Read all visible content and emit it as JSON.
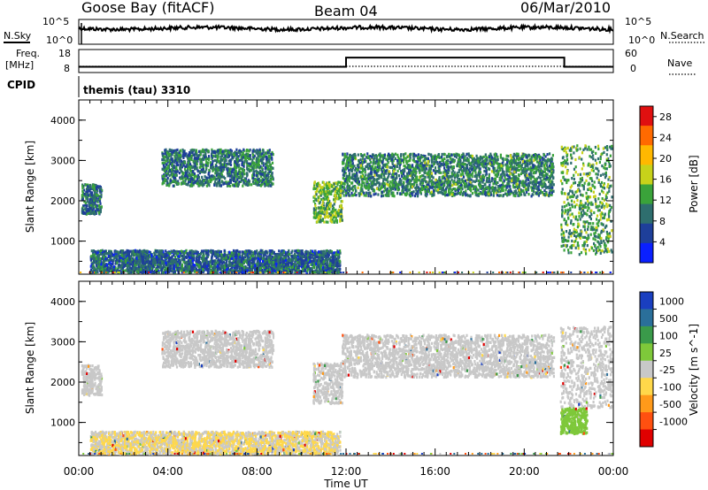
{
  "header": {
    "station": "Goose Bay (fitACF)",
    "beam": "Beam 04",
    "date": "06/Mar/2010"
  },
  "top_panels": {
    "nsky_label": "N.Sky",
    "nsearch_label": "N.Search",
    "noise_ticks": [
      "10^5",
      "10^0"
    ],
    "freq_label_1": "Freq.",
    "freq_label_2": "[MHz]",
    "freq_ticks": [
      "18",
      "8"
    ],
    "nave_label": "Nave",
    "nave_ticks": [
      "60",
      "0"
    ],
    "cpid_label": "CPID",
    "cpid_value": "themis (tau) 3310"
  },
  "x_axis": {
    "label": "Time UT",
    "ticks": [
      "00:00",
      "04:00",
      "08:00",
      "12:00",
      "16:00",
      "20:00",
      "00:00"
    ]
  },
  "colors": {
    "power_scale": [
      "#0a20ff",
      "#1e3f9a",
      "#2e6e6e",
      "#3aa33a",
      "#c7d21a",
      "#ffb800",
      "#ff6a00",
      "#e01010"
    ],
    "velocity_scale": [
      "#1a3fc0",
      "#2a6f9a",
      "#3a9a4a",
      "#7ec83a",
      "#c8c8c8",
      "#ffd84a",
      "#ff9a1a",
      "#ff5010",
      "#e00000"
    ]
  },
  "chart_data": [
    {
      "type": "heatmap",
      "panel": "power",
      "ylabel": "Slant Range [km]",
      "y_ticks": [
        "4000",
        "3000",
        "2000",
        "1000"
      ],
      "ylim": [
        180,
        4500
      ],
      "xlim_hours": [
        0,
        24
      ],
      "colorbar_label": "Power [dB]",
      "colorbar_ticks": [
        "28",
        "24",
        "20",
        "16",
        "12",
        "8",
        "4"
      ],
      "colorbar_range": [
        0,
        30
      ],
      "echo_regions": [
        {
          "t_start": 0.1,
          "t_end": 1.0,
          "r_low": 1700,
          "r_high": 2450,
          "level": 8
        },
        {
          "t_start": 3.7,
          "t_end": 8.7,
          "r_low": 2400,
          "r_high": 3300,
          "level": 9
        },
        {
          "t_start": 10.5,
          "t_end": 11.8,
          "r_low": 1500,
          "r_high": 2500,
          "level": 14
        },
        {
          "t_start": 11.8,
          "t_end": 21.3,
          "r_low": 2150,
          "r_high": 3200,
          "level": 10
        },
        {
          "t_start": 21.6,
          "t_end": 23.9,
          "r_low": 700,
          "r_high": 3400,
          "level": 12
        },
        {
          "t_start": 0.5,
          "t_end": 11.7,
          "r_low": 250,
          "r_high": 800,
          "level": 7
        }
      ]
    },
    {
      "type": "heatmap",
      "panel": "velocity",
      "ylabel": "Slant Range [km]",
      "y_ticks": [
        "4000",
        "3000",
        "2000",
        "1000"
      ],
      "ylim": [
        180,
        4500
      ],
      "xlim_hours": [
        0,
        24
      ],
      "colorbar_label": "Velocity [m s^-1]",
      "colorbar_ticks": [
        "1000",
        "500",
        "100",
        "25",
        "-25",
        "-100",
        "-500",
        "-1000"
      ],
      "echo_regions": [
        {
          "t_start": 0.1,
          "t_end": 1.0,
          "r_low": 1700,
          "r_high": 2450,
          "velocity": 0
        },
        {
          "t_start": 3.7,
          "t_end": 8.7,
          "r_low": 2400,
          "r_high": 3300,
          "velocity": 0
        },
        {
          "t_start": 10.5,
          "t_end": 11.8,
          "r_low": 1500,
          "r_high": 2500,
          "velocity": 0
        },
        {
          "t_start": 11.8,
          "t_end": 21.3,
          "r_low": 2150,
          "r_high": 3200,
          "velocity": 0
        },
        {
          "t_start": 21.6,
          "t_end": 22.8,
          "r_low": 750,
          "r_high": 1400,
          "velocity": 100
        },
        {
          "t_start": 21.6,
          "t_end": 23.9,
          "r_low": 1400,
          "r_high": 3400,
          "velocity": 0
        },
        {
          "t_start": 0.5,
          "t_end": 11.7,
          "r_low": 250,
          "r_high": 800,
          "velocity": -25
        }
      ]
    }
  ],
  "noise_series": {
    "type": "line",
    "sky_level_log10": 3.2,
    "search_level_log10": 3.0
  },
  "freq_series": {
    "type": "line",
    "segments": [
      {
        "t_start": 0,
        "t_end": 12,
        "freq_mhz": 10.5
      },
      {
        "t_start": 12,
        "t_end": 21.8,
        "freq_mhz": 14.5
      },
      {
        "t_start": 21.8,
        "t_end": 24,
        "freq_mhz": 10.5
      }
    ],
    "nave": 0
  }
}
